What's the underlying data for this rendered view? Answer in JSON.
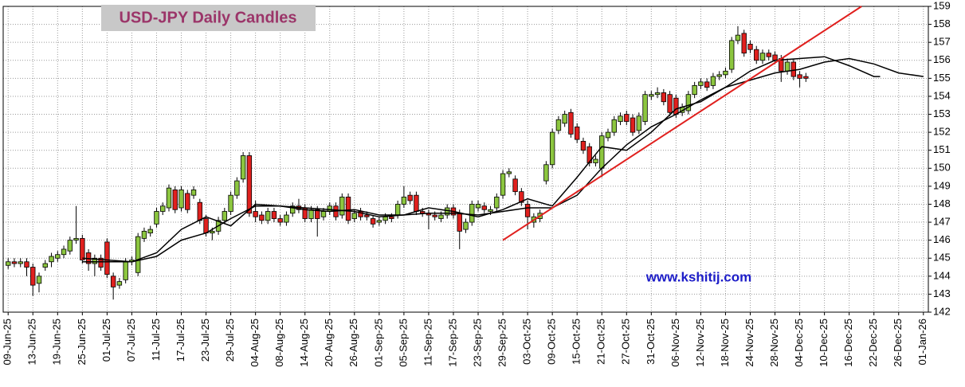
{
  "chart_data": {
    "type": "candlestick",
    "title": "USD-JPY Daily Candles",
    "annotation": "www.kshitij.com",
    "categories": [
      "09-Jun-25",
      null,
      null,
      null,
      "13-Jun-25",
      null,
      null,
      null,
      "19-Jun-25",
      null,
      null,
      null,
      "25-Jun-25",
      null,
      null,
      null,
      "01-Jul-25",
      null,
      null,
      null,
      "07-Jul-25",
      null,
      null,
      null,
      "11-Jul-25",
      null,
      null,
      null,
      "17-Jul-25",
      null,
      null,
      null,
      "23-Jul-25",
      null,
      null,
      null,
      "29-Jul-25",
      null,
      null,
      null,
      "04-Aug-25",
      null,
      null,
      null,
      "08-Aug-25",
      null,
      null,
      null,
      "14-Aug-25",
      null,
      null,
      null,
      "20-Aug-25",
      null,
      null,
      null,
      "26-Aug-25",
      null,
      null,
      null,
      "01-Sep-25",
      null,
      null,
      null,
      "05-Sep-25",
      null,
      null,
      null,
      "11-Sep-25",
      null,
      null,
      null,
      "17-Sep-25",
      null,
      null,
      null,
      "23-Sep-25",
      null,
      null,
      null,
      "29-Sep-25",
      null,
      null,
      null,
      "03-Oct-25",
      null,
      null,
      null,
      "09-Oct-25",
      null,
      null,
      null,
      "15-Oct-25",
      null,
      null,
      null,
      "21-Oct-25",
      null,
      null,
      null,
      "27-Oct-25",
      null,
      null,
      null,
      "31-Oct-25",
      null,
      null,
      null,
      "06-Nov-25",
      null,
      null,
      null,
      "12-Nov-25",
      null,
      null,
      null,
      "18-Nov-25",
      null,
      null,
      null,
      "24-Nov-25",
      null,
      null,
      null,
      "28-Nov-25",
      null,
      null,
      null,
      "04-Dec-25",
      null,
      null,
      null,
      "10-Dec-25",
      null,
      null,
      null,
      "16-Dec-25",
      null,
      null,
      null,
      "22-Dec-25",
      null,
      null,
      null,
      "26-Dec-25",
      null,
      null,
      null,
      "01-Jan-26"
    ],
    "open": [
      144.6,
      144.8,
      144.7,
      144.8,
      144.5,
      143.6,
      144.5,
      144.8,
      145.0,
      145.2,
      145.4,
      146.0,
      146.1,
      145.3,
      144.7,
      145.0,
      145.9,
      144.0,
      143.5,
      143.8,
      144.8,
      144.2,
      146.1,
      146.4,
      146.9,
      147.6,
      147.8,
      148.8,
      147.8,
      148.6,
      148.5,
      148.1,
      147.2,
      146.4,
      146.5,
      147.1,
      147.6,
      148.5,
      149.4,
      150.7,
      147.6,
      147.4,
      147.1,
      147.6,
      147.2,
      147.0,
      147.5,
      147.9,
      147.8,
      147.2,
      147.7,
      147.3,
      147.6,
      147.9,
      147.4,
      148.4,
      147.2,
      147.6,
      147.4,
      147.2,
      147.0,
      147.1,
      147.3,
      147.4,
      148.0,
      148.5,
      148.5,
      147.6,
      147.5,
      147.4,
      147.2,
      147.4,
      147.8,
      147.5,
      146.6,
      147.0,
      147.8,
      147.9,
      147.6,
      147.8,
      148.5,
      149.7,
      149.4,
      148.7,
      148.0,
      147.0,
      147.2,
      149.3,
      150.2,
      152.1,
      152.5,
      153.1,
      152.3,
      151.5,
      151.2,
      150.3,
      150.0,
      151.7,
      152.0,
      152.6,
      153.0,
      152.8,
      152.1,
      152.6,
      154.0,
      154.1,
      154.2,
      154.1,
      153.9,
      153.1,
      153.2,
      154.1,
      154.6,
      154.8,
      154.6,
      155.1,
      155.2,
      155.5,
      157.1,
      157.5,
      156.9,
      156.6,
      156.0,
      156.4,
      156.3,
      156.1,
      155.4,
      155.9,
      155.2,
      155.1,
      null,
      null,
      null,
      null,
      null,
      null,
      null,
      null,
      null,
      null,
      null,
      null,
      null,
      null,
      null,
      null,
      null,
      null,
      null
    ],
    "high": [
      145.0,
      145.0,
      145.0,
      145.0,
      144.7,
      144.2,
      144.9,
      145.3,
      145.4,
      145.7,
      146.2,
      147.9,
      146.3,
      145.5,
      145.2,
      145.2,
      146.1,
      144.2,
      143.9,
      145.0,
      145.1,
      146.4,
      146.7,
      146.8,
      147.8,
      148.1,
      149.1,
      149.0,
      149.0,
      148.8,
      149.0,
      148.3,
      147.4,
      146.7,
      147.3,
      147.8,
      148.7,
      149.5,
      150.9,
      150.9,
      148.2,
      147.6,
      147.8,
      147.8,
      147.4,
      147.6,
      148.1,
      148.3,
      148.0,
      147.9,
      147.9,
      147.8,
      148.1,
      148.1,
      148.6,
      148.6,
      147.7,
      147.8,
      147.6,
      147.4,
      147.3,
      147.5,
      147.5,
      148.2,
      149.0,
      148.7,
      148.7,
      147.8,
      147.7,
      147.6,
      147.6,
      148.0,
      148.0,
      147.7,
      147.2,
      148.2,
      148.2,
      148.1,
      147.9,
      148.6,
      149.9,
      150.0,
      149.6,
      148.9,
      148.2,
      147.5,
      147.7,
      150.4,
      152.2,
      152.9,
      153.2,
      153.3,
      152.5,
      151.7,
      151.4,
      150.7,
      152.0,
      152.2,
      152.9,
      153.1,
      153.2,
      153.0,
      153.1,
      154.3,
      154.3,
      154.5,
      154.4,
      154.3,
      154.1,
      153.6,
      154.3,
      154.8,
      155.0,
      155.0,
      155.3,
      155.4,
      155.6,
      157.3,
      157.9,
      157.7,
      157.1,
      156.8,
      156.6,
      156.6,
      156.5,
      156.3,
      156.1,
      156.1,
      155.4,
      155.3,
      null,
      null,
      null,
      null,
      null,
      null,
      null,
      null,
      null,
      null,
      null,
      null,
      null,
      null,
      null,
      null,
      null,
      null,
      null
    ],
    "low": [
      144.4,
      144.5,
      144.5,
      144.0,
      142.9,
      143.1,
      144.3,
      144.5,
      144.8,
      145.0,
      145.2,
      145.8,
      144.7,
      144.3,
      144.0,
      144.3,
      143.9,
      142.7,
      143.3,
      143.6,
      144.6,
      144.0,
      145.9,
      146.2,
      146.7,
      147.4,
      147.6,
      147.5,
      147.6,
      147.5,
      148.3,
      146.9,
      146.2,
      146.0,
      146.3,
      146.9,
      147.4,
      148.3,
      149.2,
      147.3,
      147.0,
      146.9,
      146.9,
      147.0,
      146.8,
      146.8,
      147.3,
      147.5,
      147.0,
      147.0,
      146.2,
      147.1,
      147.4,
      147.1,
      147.2,
      146.9,
      147.0,
      147.1,
      147.1,
      146.7,
      146.8,
      146.9,
      147.0,
      147.2,
      147.8,
      148.0,
      147.4,
      147.3,
      146.6,
      147.1,
      147.0,
      147.2,
      147.2,
      145.5,
      146.4,
      146.8,
      147.6,
      147.5,
      147.4,
      147.6,
      148.3,
      149.5,
      148.5,
      147.9,
      146.6,
      146.7,
      147.0,
      149.1,
      150.0,
      151.9,
      152.3,
      151.7,
      151.4,
      150.8,
      150.1,
      150.1,
      149.5,
      151.5,
      151.8,
      152.4,
      152.4,
      151.8,
      151.9,
      152.4,
      153.8,
      153.9,
      153.5,
      152.9,
      152.8,
      152.9,
      153.0,
      153.9,
      154.4,
      154.3,
      154.4,
      154.9,
      155.0,
      155.3,
      156.9,
      156.2,
      156.4,
      155.8,
      155.8,
      156.0,
      155.8,
      154.8,
      155.2,
      154.9,
      154.5,
      154.8,
      null,
      null,
      null,
      null,
      null,
      null,
      null,
      null,
      null,
      null,
      null,
      null,
      null,
      null,
      null,
      null,
      null,
      null,
      null
    ],
    "close": [
      144.8,
      144.7,
      144.8,
      144.5,
      143.5,
      144.0,
      144.7,
      145.1,
      145.2,
      145.5,
      146.0,
      146.1,
      144.9,
      144.7,
      145.0,
      144.5,
      144.1,
      143.4,
      143.7,
      144.8,
      144.9,
      146.2,
      146.5,
      146.6,
      147.6,
      147.9,
      148.9,
      147.7,
      148.8,
      147.7,
      148.8,
      147.1,
      146.4,
      146.5,
      147.1,
      147.6,
      148.5,
      149.3,
      150.7,
      147.5,
      147.3,
      147.1,
      147.6,
      147.2,
      147.0,
      147.4,
      147.9,
      147.7,
      147.2,
      147.7,
      147.2,
      147.6,
      147.9,
      147.3,
      148.4,
      147.1,
      147.5,
      147.3,
      147.3,
      146.9,
      147.1,
      147.3,
      147.2,
      148.0,
      148.4,
      148.2,
      147.6,
      147.5,
      147.4,
      147.3,
      147.4,
      147.8,
      147.4,
      146.5,
      147.0,
      148.0,
      148.0,
      147.7,
      147.7,
      148.4,
      149.7,
      149.8,
      148.7,
      148.1,
      147.3,
      147.3,
      147.5,
      150.2,
      152.0,
      152.7,
      153.0,
      151.9,
      151.6,
      151.0,
      150.3,
      150.5,
      151.8,
      152.0,
      152.7,
      152.9,
      152.6,
      152.0,
      152.9,
      154.1,
      154.1,
      154.2,
      153.7,
      153.1,
      153.0,
      153.4,
      154.1,
      154.6,
      154.8,
      154.5,
      155.1,
      155.2,
      155.4,
      157.1,
      157.4,
      156.4,
      156.6,
      156.0,
      156.4,
      156.2,
      156.0,
      155.4,
      155.9,
      155.1,
      155.0,
      155.0,
      null,
      null,
      null,
      null,
      null,
      null,
      null,
      null,
      null,
      null,
      null,
      null,
      null,
      null,
      null,
      null,
      null,
      null,
      null
    ],
    "up_color": "#8cc63f",
    "down_color": "#e0201e",
    "series": [
      {
        "color": "#000000",
        "x": [
          12,
          16,
          20,
          24,
          28,
          32,
          36,
          40,
          44,
          48,
          52,
          56,
          60,
          64,
          68,
          72,
          76,
          80,
          84,
          88,
          92,
          96,
          100,
          104,
          108,
          112,
          116,
          120,
          124,
          128,
          132,
          136,
          140,
          141
        ],
        "values": [
          145.0,
          144.9,
          144.8,
          145.3,
          146.6,
          147.3,
          146.8,
          148.0,
          147.9,
          147.7,
          147.6,
          147.7,
          147.4,
          147.4,
          147.8,
          147.6,
          147.3,
          147.7,
          148.3,
          147.9,
          149.5,
          151.2,
          151.0,
          152.0,
          153.3,
          153.7,
          154.5,
          155.4,
          156.0,
          156.1,
          156.2,
          155.7,
          155.1,
          155.1
        ]
      },
      {
        "color": "#000000",
        "x": [
          12,
          16,
          20,
          24,
          28,
          32,
          36,
          40,
          44,
          48,
          52,
          56,
          60,
          64,
          68,
          72,
          76,
          80,
          84,
          88,
          92,
          96,
          100,
          104,
          108,
          112,
          116,
          120,
          124,
          128,
          132,
          136,
          140,
          144,
          148
        ],
        "values": [
          144.8,
          144.8,
          144.8,
          145.1,
          146.0,
          146.4,
          147.2,
          147.9,
          147.9,
          147.8,
          147.7,
          147.6,
          147.3,
          147.4,
          147.5,
          147.5,
          147.4,
          147.6,
          147.8,
          147.8,
          148.5,
          150.0,
          151.3,
          152.3,
          153.0,
          153.8,
          154.5,
          154.9,
          155.3,
          155.5,
          155.9,
          156.1,
          155.8,
          155.3,
          155.1
        ]
      }
    ],
    "trendline": {
      "x": [
        80,
        138
      ],
      "values": [
        146,
        159
      ],
      "color": "#e0201e"
    },
    "ylim": [
      142,
      159
    ],
    "yticks": [
      142,
      143,
      144,
      145,
      146,
      147,
      148,
      149,
      150,
      151,
      152,
      153,
      154,
      155,
      156,
      157,
      158,
      159
    ],
    "grid": true
  }
}
